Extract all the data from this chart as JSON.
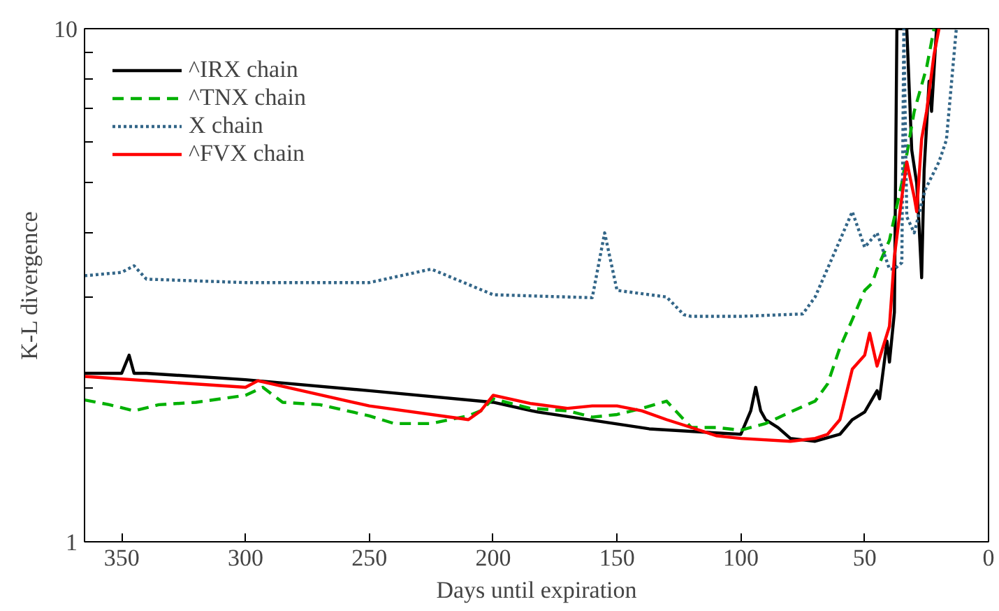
{
  "chart_data": {
    "type": "line",
    "xlabel": "Days until expiration",
    "ylabel": "K-L divergence",
    "log": "y",
    "xlim": [
      365,
      0
    ],
    "ylim": [
      1,
      10
    ],
    "xticks": [
      350,
      300,
      250,
      200,
      150,
      100,
      50,
      0
    ],
    "yticks": [
      1,
      {
        "value": 2,
        "label": null
      },
      {
        "value": 3,
        "label": null
      },
      {
        "value": 4,
        "label": null
      },
      {
        "value": 5,
        "label": null
      },
      {
        "value": 6,
        "label": null
      },
      {
        "value": 7,
        "label": null
      },
      {
        "value": 8,
        "label": null
      },
      {
        "value": 9,
        "label": null
      },
      10
    ],
    "grid": false,
    "legend": "top left",
    "marker": "none",
    "series": [
      {
        "name": "^IRX chain",
        "color": "#000000",
        "line_style": "solid",
        "x": [
          365,
          350,
          347,
          345,
          340,
          300,
          250,
          200,
          182,
          137,
          100,
          96,
          94,
          92,
          90,
          85,
          80,
          70,
          60,
          55,
          50,
          45,
          44,
          41,
          40,
          38,
          37,
          33,
          31,
          29,
          28,
          27,
          26,
          24,
          23,
          21
        ],
        "values": [
          2.13,
          2.13,
          2.31,
          2.13,
          2.13,
          2.07,
          1.97,
          1.87,
          1.79,
          1.66,
          1.62,
          1.8,
          2.0,
          1.8,
          1.73,
          1.67,
          1.59,
          1.57,
          1.62,
          1.73,
          1.79,
          1.97,
          1.9,
          2.46,
          2.24,
          2.8,
          10,
          10,
          5.8,
          5.0,
          4.1,
          3.27,
          5.3,
          7.9,
          6.9,
          10
        ]
      },
      {
        "name": "^TNX chain",
        "color": "#00b000",
        "line_style": "dashed",
        "x": [
          365,
          355,
          345,
          335,
          320,
          300,
          293,
          285,
          270,
          250,
          240,
          225,
          210,
          205,
          200,
          185,
          170,
          160,
          150,
          140,
          130,
          120,
          110,
          100,
          90,
          80,
          70,
          65,
          60,
          55,
          50,
          47,
          45,
          40,
          35,
          30,
          25,
          22
        ],
        "values": [
          1.89,
          1.85,
          1.8,
          1.85,
          1.87,
          1.93,
          2.0,
          1.87,
          1.85,
          1.76,
          1.7,
          1.7,
          1.76,
          1.8,
          1.9,
          1.82,
          1.8,
          1.75,
          1.77,
          1.82,
          1.88,
          1.67,
          1.67,
          1.65,
          1.7,
          1.79,
          1.88,
          2.03,
          2.39,
          2.71,
          3.09,
          3.19,
          3.4,
          3.87,
          5.0,
          6.9,
          8.4,
          10
        ]
      },
      {
        "name": "X chain",
        "color": "#336688",
        "line_style": "dotted",
        "x": [
          365,
          350,
          345,
          340,
          300,
          250,
          225,
          200,
          160,
          155,
          150,
          130,
          123,
          120,
          100,
          75,
          70,
          60,
          55,
          50,
          45,
          40,
          38,
          35,
          34.2,
          33,
          30,
          25.6,
          20,
          17,
          13
        ],
        "values": [
          3.3,
          3.35,
          3.45,
          3.25,
          3.2,
          3.2,
          3.4,
          3.03,
          2.99,
          4.0,
          3.09,
          3.0,
          2.77,
          2.75,
          2.75,
          2.78,
          3.0,
          3.87,
          4.4,
          3.75,
          4.0,
          3.4,
          3.4,
          3.5,
          10,
          4.3,
          4.0,
          4.85,
          5.5,
          6.07,
          10
        ]
      },
      {
        "name": "^FVX chain",
        "color": "#ff0000",
        "line_style": "solid",
        "x": [
          365,
          300,
          295,
          250,
          210,
          205,
          200,
          185,
          170,
          160,
          150,
          140,
          130,
          120,
          110,
          100,
          80,
          70,
          65,
          60,
          55,
          50,
          48,
          45,
          40,
          38,
          35,
          33,
          30,
          29,
          27,
          25,
          22,
          20
        ],
        "values": [
          2.1,
          2.0,
          2.06,
          1.84,
          1.73,
          1.8,
          1.93,
          1.86,
          1.82,
          1.84,
          1.84,
          1.8,
          1.73,
          1.67,
          1.61,
          1.59,
          1.57,
          1.59,
          1.62,
          1.73,
          2.17,
          2.31,
          2.55,
          2.2,
          2.63,
          3.6,
          4.7,
          5.5,
          4.7,
          4.4,
          6.1,
          6.9,
          8.9,
          10
        ]
      }
    ]
  }
}
